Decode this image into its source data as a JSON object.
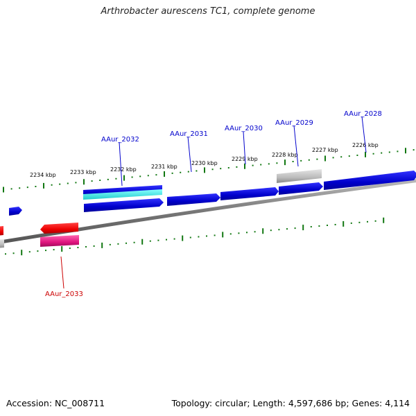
{
  "title": "Arthrobacter aurescens TC1, complete genome",
  "footer": {
    "accession": "Accession: NC_008711",
    "topology": "Topology: circular; Length: 4,597,686 bp; Genes: 4,114"
  },
  "colors": {
    "forward_gene": "#0000dd",
    "reverse_gene": "#ee0000",
    "rna": "#e0157f",
    "other_feature": "#aaaaaa",
    "backbone": "#888888",
    "tick": "#117711",
    "forward_label": "#0000cc",
    "reverse_label": "#cc0000"
  },
  "ticks": [
    "2234 kbp",
    "2233 kbp",
    "2232 kbp",
    "2231 kbp",
    "2230 kbp",
    "2229 kbp",
    "2228 kbp",
    "2227 kbp",
    "2226 kbp"
  ],
  "genes": [
    "AAur_2033",
    "AAur_2032",
    "AAur_2031",
    "AAur_2030",
    "AAur_2029",
    "AAur_2028"
  ]
}
